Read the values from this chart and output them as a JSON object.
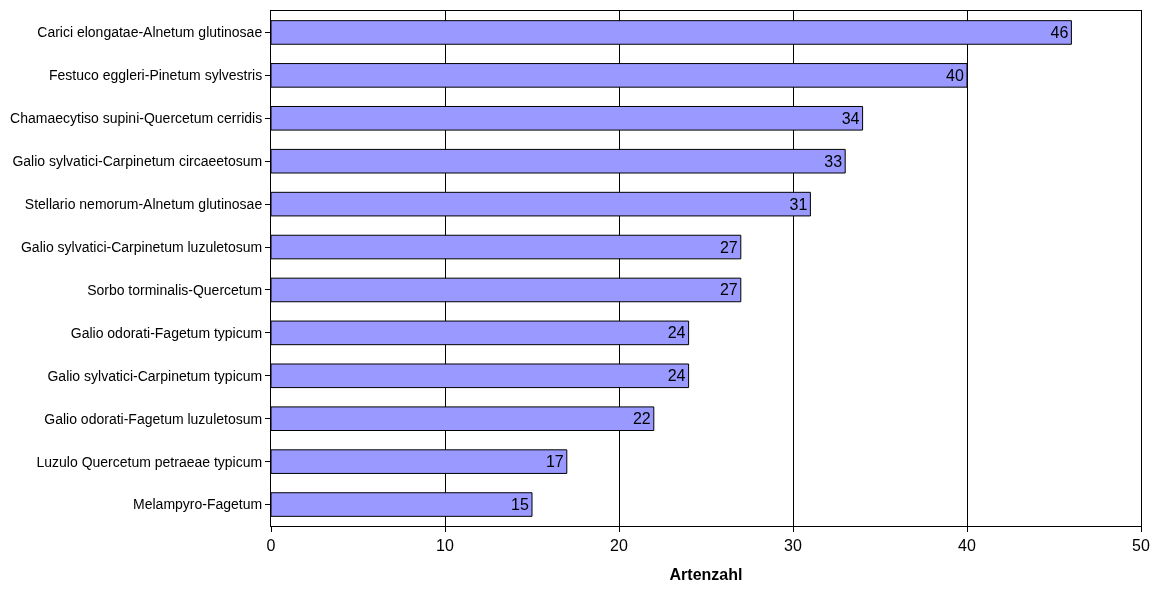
{
  "chart_data": {
    "type": "bar",
    "orientation": "horizontal",
    "xlabel": "Artenzahl",
    "categories": [
      "Carici elongatae-Alnetum glutinosae",
      "Festuco eggleri-Pinetum sylvestris",
      "Chamaecytiso supini-Quercetum cerridis",
      "Galio sylvatici-Carpinetum circaeetosum",
      "Stellario nemorum-Alnetum glutinosae",
      "Galio sylvatici-Carpinetum luzuletosum",
      "Sorbo torminalis-Quercetum",
      "Galio odorati-Fagetum typicum",
      "Galio sylvatici-Carpinetum typicum",
      "Galio odorati-Fagetum luzuletosum",
      "Luzulo Quercetum petraeae typicum",
      "Melampyro-Fagetum"
    ],
    "values": [
      46,
      40,
      34,
      33,
      31,
      27,
      27,
      24,
      24,
      22,
      17,
      15
    ],
    "color": "#9999ff",
    "xlim": [
      0,
      50
    ],
    "xticks": [
      0,
      10,
      20,
      30,
      40,
      50
    ],
    "grid": "x",
    "data_labels": true
  }
}
